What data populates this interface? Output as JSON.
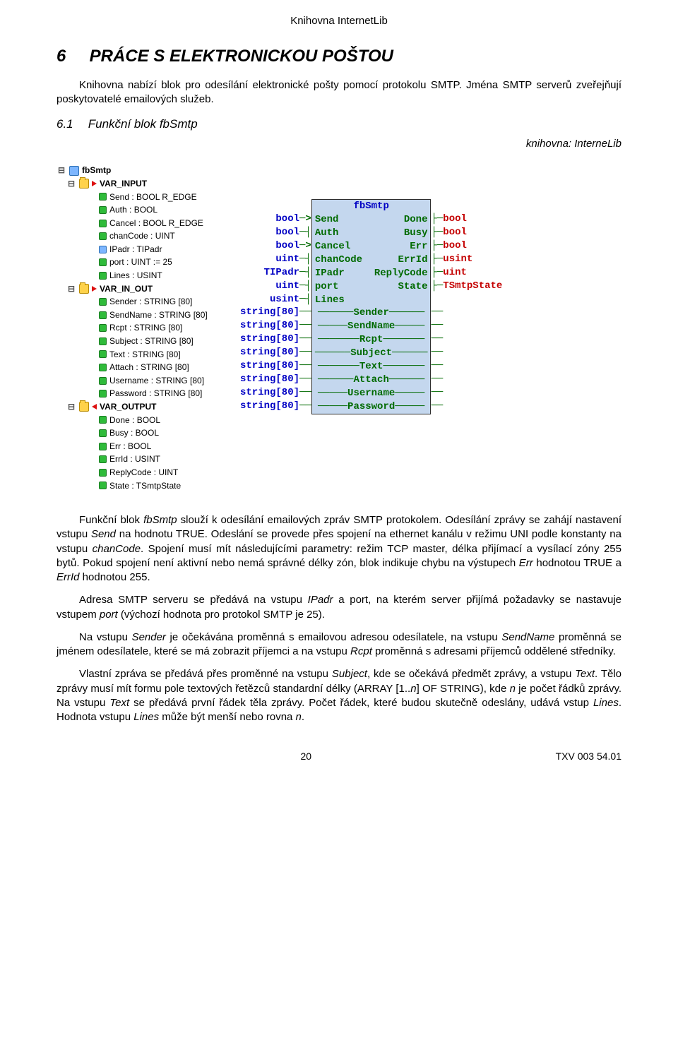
{
  "page": {
    "header": "Knihovna InternetLib",
    "footer_page": "20",
    "footer_doc": "TXV 003 54.01"
  },
  "heading": {
    "num": "6",
    "text": "PRÁCE S ELEKTRONICKOU POŠTOU"
  },
  "intro": "Knihovna nabízí blok pro odesílání elektronické pošty pomocí protokolu SMTP. Jména SMTP serverů zveřejňují poskytovatelé emailových služeb.",
  "sub": {
    "num": "6.1",
    "text": "Funkční blok fbSmtp"
  },
  "lib_line": "knihovna: InterneLib",
  "tree": {
    "root": "fbSmtp",
    "var_input": "VAR_INPUT",
    "inputs": [
      "Send : BOOL R_EDGE",
      "Auth : BOOL",
      "Cancel : BOOL R_EDGE",
      "chanCode : UINT",
      "IPadr : TIPadr",
      "port : UINT := 25",
      "Lines : USINT"
    ],
    "var_in_out": "VAR_IN_OUT",
    "inouts": [
      "Sender : STRING [80]",
      "SendName : STRING [80]",
      "Rcpt : STRING [80]",
      "Subject : STRING [80]",
      "Text : STRING [80]",
      "Attach : STRING [80]",
      "Username : STRING [80]",
      "Password : STRING [80]"
    ],
    "var_output": "VAR_OUTPUT",
    "outputs": [
      "Done : BOOL",
      "Busy : BOOL",
      "Err : BOOL",
      "ErrId : USINT",
      "ReplyCode : UINT",
      "State : TSmtpState"
    ]
  },
  "fbd": {
    "title": "fbSmtp",
    "rows_io": [
      {
        "lt": "bool",
        "lp": "Send",
        "rp": "Done",
        "rt": "bool",
        "arrow": true
      },
      {
        "lt": "bool",
        "lp": "Auth",
        "rp": "Busy",
        "rt": "bool",
        "arrow": false
      },
      {
        "lt": "bool",
        "lp": "Cancel",
        "rp": "Err",
        "rt": "bool",
        "arrow": true
      },
      {
        "lt": "uint",
        "lp": "chanCode",
        "rp": "ErrId",
        "rt": "usint",
        "arrow": false
      },
      {
        "lt": "TIPadr",
        "lp": "IPadr",
        "rp": "ReplyCode",
        "rt": "uint",
        "arrow": false
      },
      {
        "lt": "uint",
        "lp": "port",
        "rp": "State",
        "rt": "TSmtpState",
        "arrow": false
      },
      {
        "lt": "usint",
        "lp": "Lines",
        "rp": "",
        "rt": "",
        "arrow": false
      }
    ],
    "rows_inout": [
      {
        "t": "string[80]",
        "n": "Sender"
      },
      {
        "t": "string[80]",
        "n": "SendName"
      },
      {
        "t": "string[80]",
        "n": "Rcpt"
      },
      {
        "t": "string[80]",
        "n": "Subject"
      },
      {
        "t": "string[80]",
        "n": "Text"
      },
      {
        "t": "string[80]",
        "n": "Attach"
      },
      {
        "t": "string[80]",
        "n": "Username"
      },
      {
        "t": "string[80]",
        "n": "Password"
      }
    ]
  },
  "body": {
    "p1a": "Funkční blok ",
    "p1b": "fbSmtp",
    "p1c": " slouží k odesílání emailových zpráv SMTP protokolem. Odesílání zprávy se zahájí nastavení vstupu ",
    "p1d": "Send",
    "p1e": " na hodnotu TRUE. Odeslání se provede přes spojení na ethernet kanálu v režimu UNI podle konstanty na vstupu ",
    "p1f": "chanCode",
    "p1g": ". Spojení musí mít následujícími parametry: režim TCP master, délka přijímací a vysílací zóny 255 bytů. Pokud spojení není aktivní nebo nemá správné délky zón, blok indikuje chybu na výstupech ",
    "p1h": "Err",
    "p1i": " hodnotou TRUE a ",
    "p1j": "ErrId",
    "p1k": " hodnotou 255.",
    "p2a": "Adresa SMTP serveru se předává na vstupu ",
    "p2b": "IPadr",
    "p2c": " a port, na kterém server přijímá požadavky se nastavuje vstupem ",
    "p2d": "port",
    "p2e": " (výchozí hodnota pro protokol SMTP je 25).",
    "p3a": "Na vstupu ",
    "p3b": "Sender",
    "p3c": " je očekávána proměnná s emailovou adresou odesílatele, na vstupu ",
    "p3d": "SendName",
    "p3e": " proměnná se jménem odesílatele, které se má zobrazit příjemci a na vstupu ",
    "p3f": "Rcpt",
    "p3g": " proměnná s adresami příjemců oddělené středníky.",
    "p4a": "Vlastní zpráva se předává přes proměnné na vstupu ",
    "p4b": "Subject",
    "p4c": ", kde se očekává předmět zprávy, a vstupu ",
    "p4d": "Text",
    "p4e": ". Tělo zprávy musí mít formu pole textových řetězců standardní délky (ARRAY [1..",
    "p4f": "n",
    "p4g": "] OF STRING), kde ",
    "p4h": "n",
    "p4i": " je počet řádků zprávy. Na vstupu ",
    "p4j": "Text",
    "p4k": " se předává první řádek těla zprávy. Počet řádek, které budou skutečně odeslány, udává vstup ",
    "p4l": "Lines",
    "p4m": ". Hodnota vstupu ",
    "p4n": "Lines",
    "p4o": " může být menší nebo rovna ",
    "p4p": "n",
    "p4q": "."
  }
}
